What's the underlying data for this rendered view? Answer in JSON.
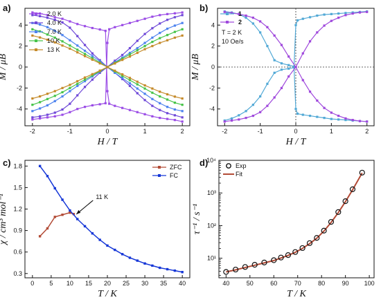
{
  "chart_data": [
    {
      "panel": "a)",
      "type": "line",
      "xlabel": "H / T",
      "ylabel": "M / μB",
      "xlim": [
        -2.2,
        2.2
      ],
      "ylim": [
        -5.6,
        5.6
      ],
      "xticks": [
        -2,
        -1,
        0,
        1,
        2
      ],
      "yticks": [
        -4,
        -2,
        0,
        2,
        4
      ],
      "legend_position": "top-left",
      "series": [
        {
          "name": "2.0 K",
          "color": "#9b4de6",
          "x": [
            -2.0,
            -1.8,
            -1.6,
            -1.4,
            -1.2,
            -1.0,
            -0.8,
            -0.6,
            -0.4,
            -0.2,
            -0.05,
            0.0,
            0.05,
            0.2,
            0.4,
            0.6,
            0.8,
            1.0,
            1.2,
            1.4,
            1.6,
            1.8,
            2.0
          ],
          "y": [
            -5.0,
            -4.9,
            -4.8,
            -4.7,
            -4.55,
            -4.3,
            -4.0,
            -3.8,
            -3.65,
            -3.55,
            -3.45,
            2.3,
            3.6,
            3.8,
            4.0,
            4.2,
            4.4,
            4.6,
            4.8,
            4.95,
            5.05,
            5.12,
            5.2
          ],
          "y_return": [
            5.2,
            5.1,
            4.95,
            4.75,
            4.6,
            4.35,
            4.1,
            3.9,
            3.72,
            3.58,
            3.45,
            -2.3,
            -3.5,
            -3.7,
            -3.9,
            -4.1,
            -4.3,
            -4.5,
            -4.7,
            -4.85,
            -4.95,
            -5.05,
            -5.2
          ]
        },
        {
          "name": "4.0 K",
          "color": "#6f49d8",
          "x": [
            -2.0,
            -1.8,
            -1.6,
            -1.4,
            -1.2,
            -1.0,
            -0.8,
            -0.6,
            -0.4,
            -0.2,
            0.0,
            0.2,
            0.4,
            0.6,
            0.8,
            1.0,
            1.2,
            1.4,
            1.6,
            1.8,
            2.0
          ],
          "y": [
            -4.8,
            -4.7,
            -4.55,
            -4.35,
            -4.05,
            -3.5,
            -2.7,
            -1.9,
            -1.2,
            -0.55,
            0.0,
            0.6,
            1.15,
            1.8,
            2.5,
            3.15,
            3.7,
            4.15,
            4.5,
            4.75,
            4.95
          ],
          "y_return": [
            4.95,
            4.85,
            4.7,
            4.5,
            4.25,
            3.75,
            2.95,
            2.1,
            1.3,
            0.65,
            0.0,
            -0.55,
            -1.15,
            -1.8,
            -2.5,
            -3.15,
            -3.7,
            -4.1,
            -4.4,
            -4.6,
            -4.8
          ]
        },
        {
          "name": "7.0 K",
          "color": "#4f84ef",
          "x": [
            -2.0,
            -1.8,
            -1.6,
            -1.4,
            -1.2,
            -1.0,
            -0.8,
            -0.6,
            -0.4,
            -0.2,
            0.0,
            0.2,
            0.4,
            0.6,
            0.8,
            1.0,
            1.2,
            1.4,
            1.6,
            1.8,
            2.0
          ],
          "y": [
            -4.2,
            -3.95,
            -3.65,
            -3.25,
            -2.8,
            -2.3,
            -1.8,
            -1.35,
            -0.9,
            -0.45,
            0.0,
            0.45,
            0.9,
            1.35,
            1.8,
            2.3,
            2.8,
            3.25,
            3.65,
            3.95,
            4.2
          ],
          "y_return": [
            4.2,
            4.05,
            3.8,
            3.45,
            3.05,
            2.55,
            2.05,
            1.55,
            1.05,
            0.55,
            0.0,
            -0.55,
            -1.05,
            -1.55,
            -2.05,
            -2.55,
            -3.05,
            -3.45,
            -3.8,
            -4.05,
            -4.2
          ]
        },
        {
          "name": "10 K",
          "color": "#47c44a",
          "x": [
            -2.0,
            -1.8,
            -1.6,
            -1.4,
            -1.2,
            -1.0,
            -0.8,
            -0.6,
            -0.4,
            -0.2,
            0.0,
            0.2,
            0.4,
            0.6,
            0.8,
            1.0,
            1.2,
            1.4,
            1.6,
            1.8,
            2.0
          ],
          "y": [
            -3.6,
            -3.35,
            -3.05,
            -2.75,
            -2.4,
            -2.0,
            -1.6,
            -1.2,
            -0.8,
            -0.4,
            0.0,
            0.4,
            0.8,
            1.2,
            1.6,
            2.0,
            2.4,
            2.75,
            3.05,
            3.35,
            3.6
          ],
          "y_return": [
            3.6,
            3.4,
            3.1,
            2.8,
            2.45,
            2.05,
            1.65,
            1.25,
            0.85,
            0.42,
            0.0,
            -0.42,
            -0.85,
            -1.25,
            -1.65,
            -2.05,
            -2.45,
            -2.8,
            -3.1,
            -3.4,
            -3.6
          ]
        },
        {
          "name": "13 K",
          "color": "#c58b2b",
          "x": [
            -2.0,
            -1.8,
            -1.6,
            -1.4,
            -1.2,
            -1.0,
            -0.8,
            -0.6,
            -0.4,
            -0.2,
            0.0,
            0.2,
            0.4,
            0.6,
            0.8,
            1.0,
            1.2,
            1.4,
            1.6,
            1.8,
            2.0
          ],
          "y": [
            -3.0,
            -2.8,
            -2.55,
            -2.3,
            -2.0,
            -1.7,
            -1.35,
            -1.0,
            -0.68,
            -0.34,
            0.0,
            0.34,
            0.68,
            1.0,
            1.35,
            1.7,
            2.0,
            2.3,
            2.55,
            2.8,
            3.0
          ],
          "y_return": [
            3.0,
            2.82,
            2.6,
            2.35,
            2.05,
            1.75,
            1.4,
            1.04,
            0.7,
            0.35,
            0.0,
            -0.35,
            -0.7,
            -1.04,
            -1.4,
            -1.75,
            -2.05,
            -2.35,
            -2.6,
            -2.82,
            -3.0
          ]
        }
      ]
    },
    {
      "panel": "b)",
      "type": "line",
      "xlabel": "H / T",
      "ylabel": "M / μB",
      "xlim": [
        -2.2,
        2.2
      ],
      "ylim": [
        -5.6,
        5.6
      ],
      "xticks": [
        -2,
        -1,
        0,
        1,
        2
      ],
      "yticks": [
        -4,
        -2,
        0,
        2,
        4
      ],
      "legend_position": "top-left",
      "annotation_lines": [
        "T = 2 K",
        "10 Oe/s"
      ],
      "series": [
        {
          "name": "1",
          "color": "#52a9d6",
          "x": [
            -2.0,
            -1.8,
            -1.6,
            -1.4,
            -1.2,
            -1.0,
            -0.8,
            -0.6,
            -0.4,
            -0.2,
            -0.05,
            0.0,
            0.05,
            0.2,
            0.4,
            0.6,
            0.8,
            1.0,
            1.2,
            1.4,
            1.6,
            1.8,
            2.0
          ],
          "y": [
            -5.1,
            -4.9,
            -4.6,
            -4.2,
            -3.6,
            -2.8,
            -1.6,
            -0.55,
            -0.25,
            -0.15,
            -0.05,
            4.0,
            4.45,
            4.6,
            4.75,
            4.9,
            5.0,
            5.05,
            5.1,
            5.15,
            5.2,
            5.25,
            5.3
          ],
          "y_return": [
            5.3,
            5.2,
            5.05,
            4.7,
            4.15,
            3.3,
            2.0,
            0.65,
            0.35,
            0.18,
            0.05,
            -4.0,
            -4.45,
            -4.55,
            -4.65,
            -4.75,
            -4.85,
            -4.95,
            -5.0,
            -5.05,
            -5.1,
            -5.15,
            -5.2
          ]
        },
        {
          "name": "2",
          "color": "#9f48dc",
          "x": [
            -2.0,
            -1.8,
            -1.6,
            -1.4,
            -1.2,
            -1.0,
            -0.8,
            -0.6,
            -0.4,
            -0.2,
            0.0,
            0.2,
            0.4,
            0.6,
            0.8,
            1.0,
            1.2,
            1.4,
            1.6,
            1.8,
            2.0
          ],
          "y": [
            -5.2,
            -5.1,
            -5.0,
            -4.85,
            -4.65,
            -4.3,
            -3.7,
            -2.9,
            -2.0,
            -0.9,
            0.0,
            1.3,
            2.45,
            3.3,
            3.95,
            4.4,
            4.7,
            4.95,
            5.1,
            5.2,
            5.25
          ],
          "y_return": [
            5.25,
            5.15,
            5.05,
            4.9,
            4.7,
            4.35,
            3.8,
            3.0,
            2.1,
            1.0,
            0.0,
            -1.25,
            -2.35,
            -3.2,
            -3.9,
            -4.35,
            -4.65,
            -4.9,
            -5.05,
            -5.15,
            -5.2
          ]
        }
      ]
    },
    {
      "panel": "c)",
      "type": "line",
      "xlabel": "T / K",
      "ylabel": "χ / cm³ mol⁻¹",
      "xlim": [
        -2,
        42
      ],
      "ylim": [
        0.24,
        1.88
      ],
      "xticks": [
        0,
        5,
        10,
        15,
        20,
        25,
        30,
        35,
        40
      ],
      "yticks": [
        0.3,
        0.6,
        0.9,
        1.2,
        1.5,
        1.8
      ],
      "legend_position": "top-right",
      "annotation": "11 K",
      "annotation_point": [
        11,
        1.09
      ],
      "series": [
        {
          "name": "ZFC",
          "color": "#b24a35",
          "x": [
            2,
            4,
            6,
            8,
            10,
            11
          ],
          "y": [
            0.82,
            0.93,
            1.09,
            1.12,
            1.15,
            1.13
          ]
        },
        {
          "name": "FC",
          "color": "#1637d7",
          "x": [
            2,
            4,
            6,
            8,
            10,
            12,
            14,
            16,
            18,
            20,
            22,
            24,
            26,
            28,
            30,
            32,
            34,
            36,
            38,
            40
          ],
          "y": [
            1.8,
            1.66,
            1.49,
            1.33,
            1.18,
            1.06,
            0.96,
            0.86,
            0.77,
            0.69,
            0.63,
            0.57,
            0.52,
            0.48,
            0.44,
            0.41,
            0.38,
            0.36,
            0.34,
            0.32
          ]
        }
      ]
    },
    {
      "panel": "d)",
      "type": "scatter",
      "xlabel": "T / K",
      "ylabel": "τ⁻¹ / s⁻¹",
      "xlim": [
        37,
        102
      ],
      "ylim_log10": [
        0.4,
        4.0
      ],
      "xticks": [
        40,
        50,
        60,
        70,
        80,
        90,
        100
      ],
      "yticks_log10": [
        1,
        2,
        3,
        4
      ],
      "y_tick_labels": [
        "10¹",
        "10²",
        "10³",
        "10⁴"
      ],
      "legend_position": "top-left",
      "series": [
        {
          "name": "Exp",
          "color": "#111111",
          "marker": "open-circle",
          "x": [
            40,
            44,
            48,
            52,
            56,
            60,
            63,
            66,
            69,
            72,
            75,
            78,
            81,
            84,
            87,
            90,
            93,
            97
          ],
          "y": [
            3.8,
            4.5,
            5.4,
            6.3,
            7.4,
            8.7,
            10.5,
            12.5,
            15.5,
            20.5,
            29,
            42,
            70,
            130,
            260,
            560,
            1300,
            4200
          ]
        },
        {
          "name": "Fit",
          "color": "#b24a35",
          "x": [
            40,
            44,
            48,
            52,
            56,
            60,
            63,
            66,
            69,
            72,
            75,
            78,
            81,
            84,
            87,
            90,
            93,
            97
          ],
          "y": [
            3.8,
            4.4,
            5.2,
            6.1,
            7.2,
            8.5,
            10.2,
            12.2,
            15.2,
            20.0,
            28,
            41,
            68,
            125,
            250,
            540,
            1250,
            4100
          ]
        }
      ]
    }
  ]
}
